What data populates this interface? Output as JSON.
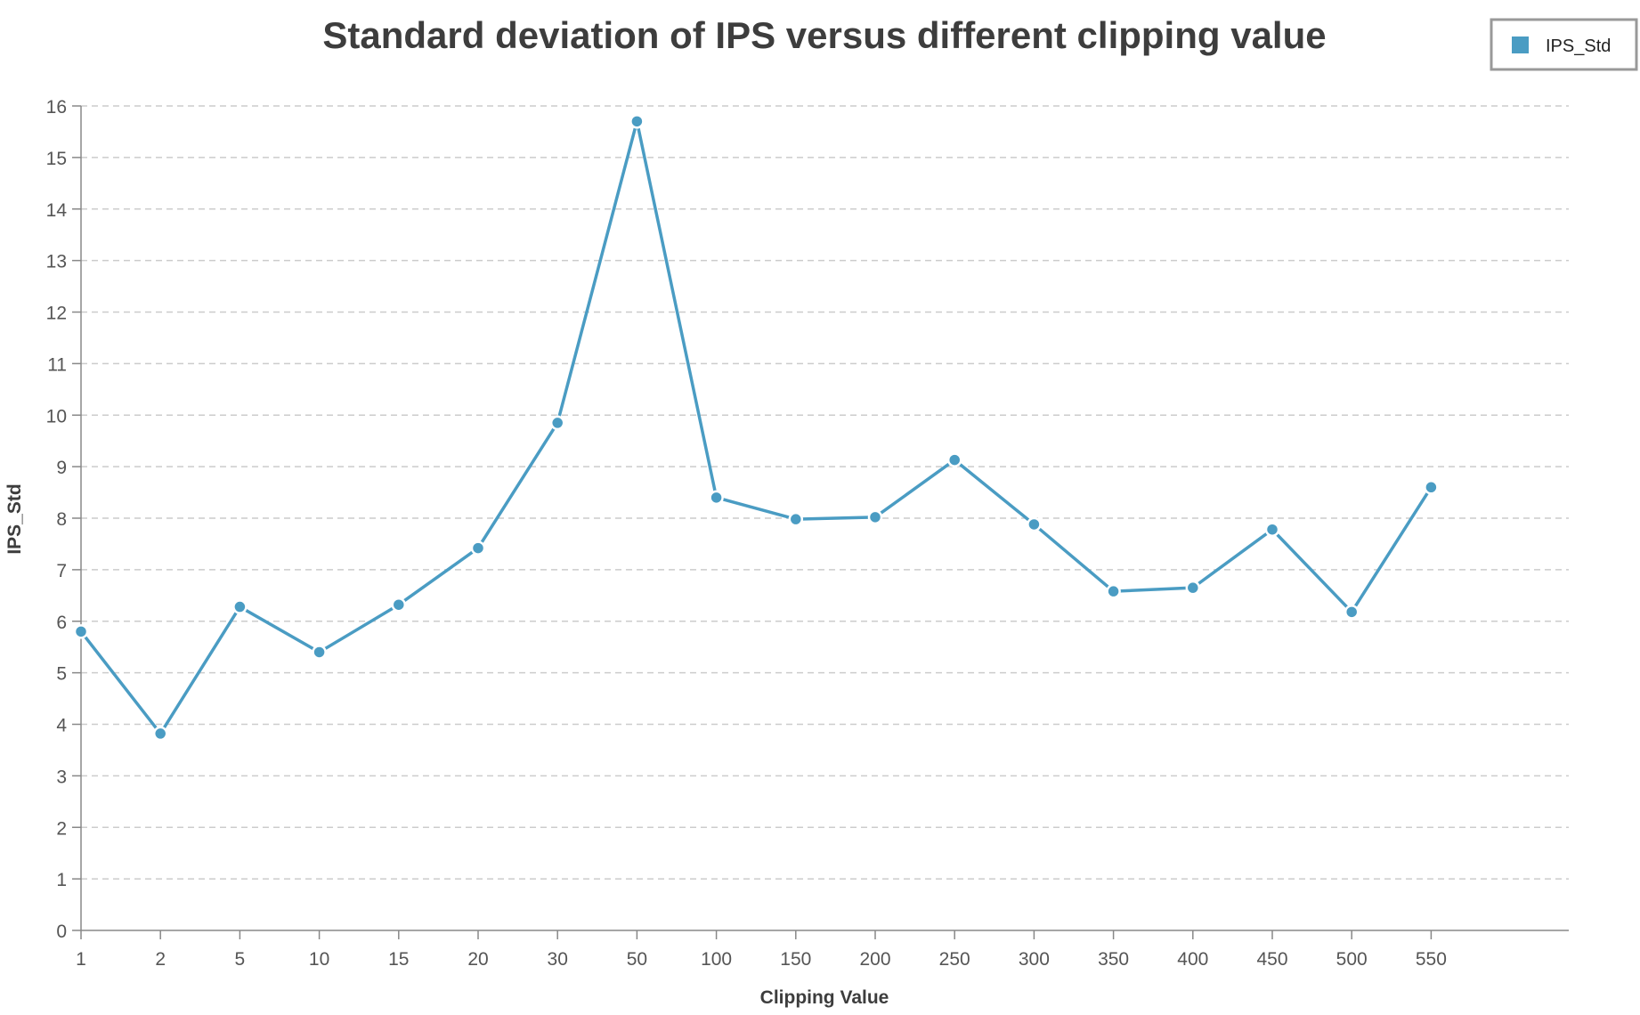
{
  "chart_data": {
    "type": "line",
    "title": "Standard deviation of IPS versus different clipping value",
    "xlabel": "Clipping Value",
    "ylabel": "IPS_Std",
    "categories": [
      "1",
      "2",
      "5",
      "10",
      "15",
      "20",
      "30",
      "50",
      "100",
      "150",
      "200",
      "250",
      "300",
      "350",
      "400",
      "450",
      "500",
      "550"
    ],
    "series": [
      {
        "name": "IPS_Std",
        "color": "#4a9cc3",
        "values": [
          5.8,
          3.82,
          6.28,
          5.4,
          6.32,
          7.42,
          9.85,
          15.7,
          8.4,
          7.98,
          8.02,
          9.13,
          7.88,
          6.58,
          6.65,
          7.78,
          6.18,
          8.6
        ]
      }
    ],
    "ylim": [
      0,
      16
    ],
    "yticks": [
      0,
      1,
      2,
      3,
      4,
      5,
      6,
      7,
      8,
      9,
      10,
      11,
      12,
      13,
      14,
      15,
      16
    ],
    "grid": true,
    "legend_position": "top-right"
  },
  "colors": {
    "series": "#4a9cc3",
    "grid": "#cccccc",
    "axis": "#888888",
    "legend_border": "#999999"
  }
}
